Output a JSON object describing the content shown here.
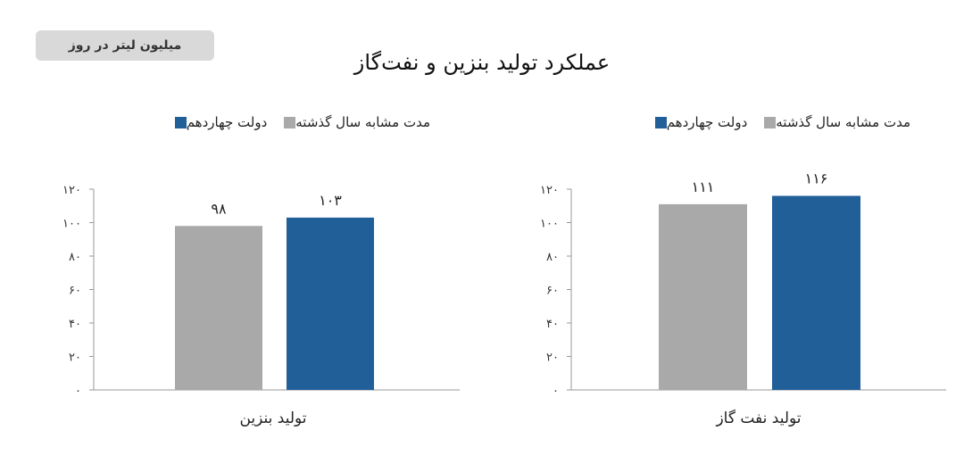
{
  "unit_label": "میلیون لیتر در روز",
  "title": "عملکرد تولید بنزین و نفت‌گاز",
  "colors": {
    "current": "#215f99",
    "previous": "#a9a9a9"
  },
  "chart_data": [
    {
      "type": "bar",
      "title": "تولید نفت گاز",
      "categories": [
        "تولید نفت گاز"
      ],
      "series": [
        {
          "name": "مدت مشابه سال گذشته",
          "values": [
            111
          ],
          "value_labels": [
            "۱۱۱"
          ],
          "color": "#a9a9a9"
        },
        {
          "name": "دولت چهاردهم",
          "values": [
            116
          ],
          "value_labels": [
            "۱۱۶"
          ],
          "color": "#215f99"
        }
      ],
      "legend": [
        "دولت چهاردهم",
        "مدت مشابه سال گذشته"
      ],
      "xlabel": "تولید نفت گاز",
      "ylabel": "",
      "ylim": [
        0,
        120
      ],
      "yticks": [
        0,
        20,
        40,
        60,
        80,
        100,
        120
      ],
      "ytick_labels": [
        "۰",
        "۲۰",
        "۴۰",
        "۶۰",
        "۸۰",
        "۱۰۰",
        "۱۲۰"
      ],
      "grid": false,
      "legend_position": "top-right"
    },
    {
      "type": "bar",
      "title": "تولید بنزین",
      "categories": [
        "تولید بنزین"
      ],
      "series": [
        {
          "name": "مدت مشابه سال گذشته",
          "values": [
            98
          ],
          "value_labels": [
            "۹۸"
          ],
          "color": "#a9a9a9"
        },
        {
          "name": "دولت چهاردهم",
          "values": [
            103
          ],
          "value_labels": [
            "۱۰۳"
          ],
          "color": "#215f99"
        }
      ],
      "legend": [
        "دولت چهاردهم",
        "مدت مشابه سال گذشته"
      ],
      "xlabel": "تولید بنزین",
      "ylabel": "",
      "ylim": [
        0,
        120
      ],
      "yticks": [
        0,
        20,
        40,
        60,
        80,
        100,
        120
      ],
      "ytick_labels": [
        "۰",
        "۲۰",
        "۴۰",
        "۶۰",
        "۸۰",
        "۱۰۰",
        "۱۲۰"
      ],
      "grid": false,
      "legend_position": "top-right"
    }
  ]
}
